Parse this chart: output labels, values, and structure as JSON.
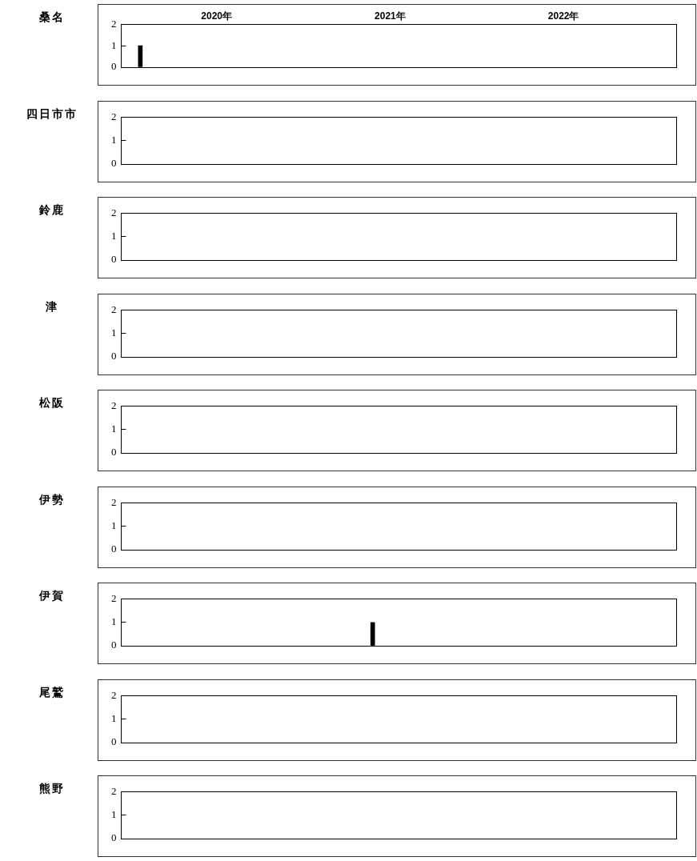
{
  "chart_data": [
    {
      "type": "bar",
      "title": "桑名",
      "x": [
        2020.06
      ],
      "values": [
        1
      ],
      "color": "#000000",
      "xlim": [
        2019.95,
        2023.15
      ],
      "xticks": [
        {
          "value": 2020.5,
          "label": "2020年"
        },
        {
          "value": 2021.5,
          "label": "2021年"
        },
        {
          "value": 2022.5,
          "label": "2022年"
        }
      ],
      "ylim": [
        0,
        2
      ],
      "yticks": [
        0,
        1,
        2
      ],
      "grid": false,
      "legend": false
    },
    {
      "type": "bar",
      "title": "四日市市",
      "color": "#000000",
      "xlim": [
        2019.95,
        2023.15
      ],
      "ylim": [
        0,
        2
      ],
      "yticks": [
        0,
        1,
        2
      ],
      "grid": false,
      "legend": false,
      "tick_labels": "y"
    },
    {
      "type": "bar",
      "title": "鈴鹿",
      "color": "#000000",
      "xlim": [
        2019.95,
        2023.15
      ],
      "ylim": [
        0,
        2
      ],
      "yticks": [
        0,
        1,
        2
      ],
      "grid": false,
      "legend": false,
      "tick_labels": "y"
    },
    {
      "type": "bar",
      "title": "津",
      "color": "#000000",
      "xlim": [
        2019.95,
        2023.15
      ],
      "ylim": [
        0,
        2
      ],
      "yticks": [
        0,
        1,
        2
      ],
      "grid": false,
      "legend": false,
      "tick_labels": "y"
    },
    {
      "type": "bar",
      "title": "松阪",
      "color": "#000000",
      "xlim": [
        2019.95,
        2023.15
      ],
      "ylim": [
        0,
        2
      ],
      "yticks": [
        0,
        1,
        2
      ],
      "grid": false,
      "legend": false,
      "tick_labels": "y"
    },
    {
      "type": "bar",
      "title": "伊勢",
      "color": "#000000",
      "xlim": [
        2019.95,
        2023.15
      ],
      "ylim": [
        0,
        2
      ],
      "yticks": [
        0,
        1,
        2
      ],
      "grid": false,
      "legend": false,
      "tick_labels": "y"
    },
    {
      "type": "bar",
      "title": "伊賀",
      "x": [
        2021.4
      ],
      "values": [
        1
      ],
      "color": "#000000",
      "xlim": [
        2019.95,
        2023.15
      ],
      "ylim": [
        0,
        2
      ],
      "yticks": [
        0,
        1,
        2
      ],
      "grid": false,
      "legend": false,
      "tick_labels": "y"
    },
    {
      "type": "bar",
      "title": "尾鷲",
      "color": "#000000",
      "xlim": [
        2019.95,
        2023.15
      ],
      "ylim": [
        0,
        2
      ],
      "yticks": [
        0,
        1,
        2
      ],
      "grid": false,
      "legend": false,
      "tick_labels": "y"
    },
    {
      "type": "bar",
      "title": "熊野",
      "color": "#000000",
      "xlim": [
        2019.95,
        2023.15
      ],
      "ylim": [
        0,
        2
      ],
      "yticks": [
        0,
        1,
        2
      ],
      "grid": false,
      "legend": false,
      "tick_labels": "y"
    }
  ]
}
